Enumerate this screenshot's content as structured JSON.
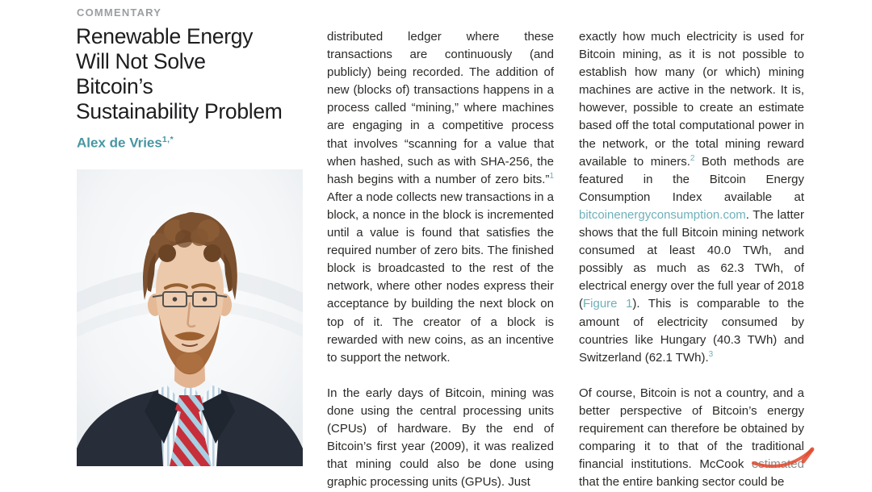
{
  "header": {
    "kicker": "COMMENTARY",
    "title_lines": [
      "Renewable Energy",
      "Will Not Solve",
      "Bitcoin’s",
      "Sustainability Problem"
    ],
    "author": {
      "name": "Alex de Vries",
      "sup": "1,*"
    }
  },
  "photo": {
    "description": "Portrait photo of the author: man with curly reddish-brown hair, thin glasses and beard, wearing a dark navy suit, blue-striped shirt and red tie with light blue stripes"
  },
  "body": {
    "column1": {
      "paragraphs": [
        {
          "runs": [
            {
              "t": "distributed ledger where these transactions are continuously (and publicly) being recorded. The addition of new (blocks of) transactions happens in a process called “mining,” where machines are engaging in a competitive process that involves “scanning for a value that when hashed, such as with SHA-256, the hash begins with a number of zero bits.”"
            },
            {
              "t": "1",
              "style": "sup"
            },
            {
              "t": " After a node collects new transactions in a block, a nonce in the block is incremented until a value is found that satisfies the required number of zero bits. The finished block is broadcasted to the rest of the network, where other nodes express their acceptance by building the next block on top of it. The creator of a block is rewarded with new coins, as an incentive to support the network."
            }
          ]
        },
        {
          "runs": [
            {
              "t": "In the early days of Bitcoin, mining was done using the central processing units (CPUs) of hardware. By the end of Bitcoin’s first year (2009), it was realized that mining could also be done using graphic processing units (GPUs). Just"
            }
          ]
        }
      ]
    },
    "column2": {
      "paragraphs": [
        {
          "runs": [
            {
              "t": "exactly how much electricity is used for Bitcoin mining, as it is not possible to establish how many (or which) mining machines are active in the network. It is, however, possible to create an estimate based off the total computational power in the network, or the total mining reward available to miners."
            },
            {
              "t": "2",
              "style": "sup"
            },
            {
              "t": " Both methods are featured in the Bitcoin Energy Consumption Index available at "
            },
            {
              "t": "bitcoinenergyconsumption.com",
              "style": "link"
            },
            {
              "t": ". The latter shows that the full Bitcoin mining network consumed at least 40.0 TWh, and possibly as much as 62.3 TWh, of electrical energy over the full year of 2018 ("
            },
            {
              "t": "Figure 1",
              "style": "link"
            },
            {
              "t": "). This is comparable to the amount of electricity consumed by countries like Hungary (40.3 TWh) and Switzerland (62.1 TWh)."
            },
            {
              "t": "3",
              "style": "sup"
            }
          ]
        },
        {
          "runs": [
            {
              "t": "Of course, Bitcoin is not a country, and a better perspective of Bitcoin’s energy requirement can therefore be obtained by comparing it to that of the traditional financial institutions. McCook estimated that the entire banking sector could be"
            }
          ]
        }
      ]
    }
  },
  "icons": {
    "watermark": "red-check-mark"
  },
  "colors": {
    "accent": "#4796a2",
    "link": "#6fb0ba",
    "kicker": "#9b9fa2",
    "text": "#2b2a28",
    "title": "#1d1d1f",
    "watermark_red": "#e04a2e"
  }
}
